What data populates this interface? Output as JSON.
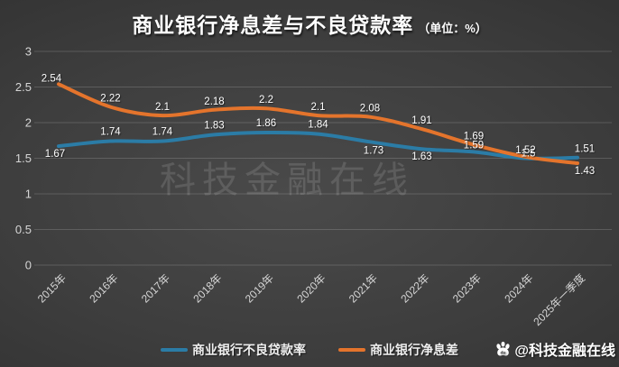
{
  "title": {
    "main": "商业银行净息差与不良贷款率",
    "unit": "（单位：%）"
  },
  "chart_data": {
    "type": "line",
    "title": "商业银行净息差与不良贷款率（单位：%）",
    "categories": [
      "2015年",
      "2016年",
      "2017年",
      "2018年",
      "2019年",
      "2020年",
      "2021年",
      "2022年",
      "2023年",
      "2024年",
      "2025年一季度"
    ],
    "series": [
      {
        "name": "商业银行不良贷款率",
        "color": "#2B7CA6",
        "values": [
          1.67,
          1.74,
          1.74,
          1.83,
          1.86,
          1.84,
          1.73,
          1.63,
          1.59,
          1.5,
          1.51
        ],
        "point_labels": [
          "1.67",
          "1.74",
          "1.74",
          "1.83",
          "1.86",
          "1.84",
          "1.73",
          "1.63",
          "1.59",
          "1.5",
          "1.51"
        ]
      },
      {
        "name": "商业银行净息差",
        "color": "#E4742C",
        "values": [
          2.54,
          2.22,
          2.1,
          2.18,
          2.2,
          2.1,
          2.08,
          1.91,
          1.69,
          1.52,
          1.43
        ],
        "point_labels": [
          "2.54",
          "2.22",
          "2.1",
          "2.18",
          "2.2",
          "2.1",
          "2.08",
          "1.91",
          "1.69",
          "1.52",
          "1.43"
        ]
      }
    ],
    "ylim": [
      0,
      3
    ],
    "yticks": [
      3,
      2.5,
      2,
      1.5,
      1,
      0.5,
      0
    ],
    "ytick_labels": [
      "3",
      "2.5",
      "2",
      "1.5",
      "1",
      "0.5",
      "0"
    ],
    "grid": true,
    "smoothed": true,
    "legend_position": "bottom-center"
  },
  "legend": [
    {
      "label": "商业银行不良贷款率",
      "color": "#2B7CA6"
    },
    {
      "label": "商业银行净息差",
      "color": "#E4742C"
    }
  ],
  "watermarks": {
    "center_text": "科技金融在线",
    "credit_text": "@科技金融在线",
    "credit_icon": "baidu-paw-icon"
  },
  "colors": {
    "gridline": "rgba(255,255,255,0.16)",
    "axis_text": "#d6d6d6",
    "data_label": "#ffffff"
  }
}
